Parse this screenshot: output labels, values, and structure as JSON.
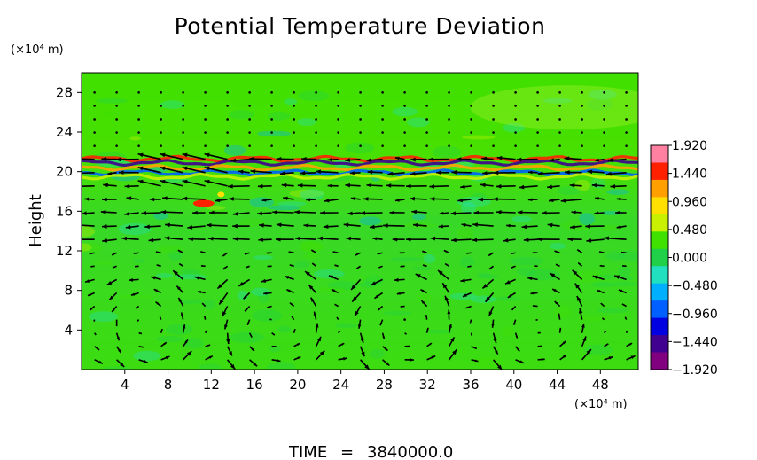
{
  "chart_data": {
    "type": "heatmap",
    "title": "Potential Temperature Deviation",
    "ylabel": "Height",
    "y_unit_label": "(×10⁴ m)",
    "x_unit_label": "(×10⁴ m)",
    "xlabel": "",
    "xlim": [
      0,
      51.5
    ],
    "ylim": [
      0,
      30
    ],
    "x_ticks": [
      "4",
      "8",
      "12",
      "16",
      "20",
      "24",
      "28",
      "32",
      "36",
      "40",
      "44",
      "48"
    ],
    "y_ticks": [
      "4",
      "8",
      "12",
      "16",
      "20",
      "24",
      "28"
    ],
    "colorbar": {
      "min": -1.92,
      "max": 1.92,
      "tick_labels": [
        "1.920",
        "1.440",
        "0.960",
        "0.480",
        "0.000",
        "−0.480",
        "−0.960",
        "−1.440",
        "−1.920"
      ],
      "tick_values": [
        1.92,
        1.44,
        0.96,
        0.48,
        0.0,
        -0.48,
        -0.96,
        -1.44,
        -1.92
      ],
      "colors": [
        "#ff80a0",
        "#ff2000",
        "#ffa000",
        "#ffe000",
        "#c8f000",
        "#40e000",
        "#20d048",
        "#20e0c0",
        "#00b0ff",
        "#0060ff",
        "#0000e0",
        "#400090",
        "#800080"
      ]
    },
    "bands": [
      {
        "y": 21.3,
        "value": 1.6
      },
      {
        "y": 20.9,
        "value": -1.5
      },
      {
        "y": 20.4,
        "value": 1.2
      },
      {
        "y": 19.9,
        "value": -0.9
      },
      {
        "y": 19.5,
        "value": 0.6
      }
    ],
    "hotspot": {
      "x": 11.3,
      "y": 16.8,
      "value": 1.7
    },
    "vector_field": {
      "upper_jet": {
        "y_range": [
          12,
          20
        ],
        "direction": "westward"
      },
      "lower_cells": {
        "y_range": [
          0,
          9
        ],
        "cell_centers_x": [
          6,
          18,
          30,
          42
        ]
      }
    }
  },
  "footer": {
    "time_label": "TIME",
    "equals": "=",
    "time_value": "3840000.0"
  }
}
